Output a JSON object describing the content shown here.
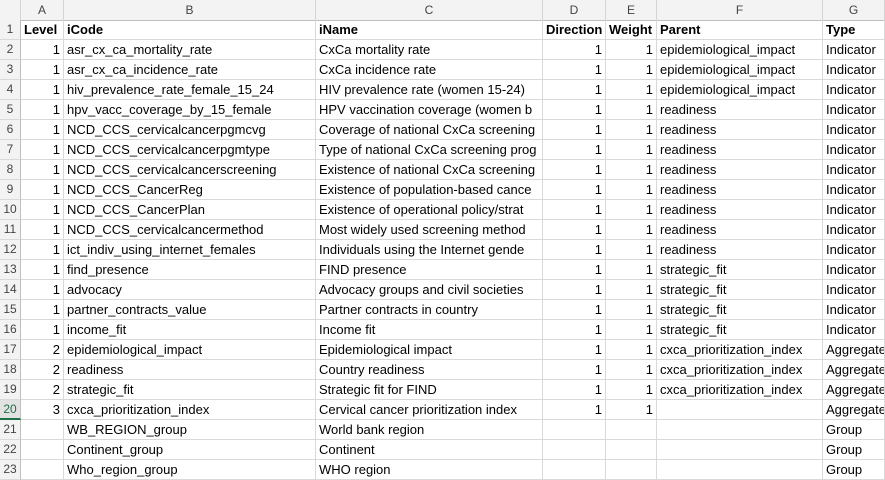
{
  "columns": [
    "A",
    "B",
    "C",
    "D",
    "E",
    "F",
    "G"
  ],
  "header": {
    "level": "Level",
    "icode": "iCode",
    "iname": "iName",
    "direction": "Direction",
    "weight": "Weight",
    "parent": "Parent",
    "type": "Type"
  },
  "rows": [
    {
      "n": "2",
      "level": "1",
      "icode": "asr_cx_ca_mortality_rate",
      "iname": "CxCa mortality rate",
      "direction": "1",
      "weight": "1",
      "parent": "epidemiological_impact",
      "type": "Indicator"
    },
    {
      "n": "3",
      "level": "1",
      "icode": "asr_cx_ca_incidence_rate",
      "iname": "CxCa incidence rate",
      "direction": "1",
      "weight": "1",
      "parent": "epidemiological_impact",
      "type": "Indicator"
    },
    {
      "n": "4",
      "level": "1",
      "icode": "hiv_prevalence_rate_female_15_24",
      "iname": "HIV prevalence rate (women 15-24)",
      "direction": "1",
      "weight": "1",
      "parent": "epidemiological_impact",
      "type": "Indicator"
    },
    {
      "n": "5",
      "level": "1",
      "icode": "hpv_vacc_coverage_by_15_female",
      "iname": "HPV vaccination coverage (women b",
      "direction": "1",
      "weight": "1",
      "parent": "readiness",
      "type": "Indicator"
    },
    {
      "n": "6",
      "level": "1",
      "icode": "NCD_CCS_cervicalcancerpgmcvg",
      "iname": "Coverage of national CxCa screening",
      "direction": "1",
      "weight": "1",
      "parent": "readiness",
      "type": "Indicator"
    },
    {
      "n": "7",
      "level": "1",
      "icode": "NCD_CCS_cervicalcancerpgmtype",
      "iname": "Type of national CxCa screening prog",
      "direction": "1",
      "weight": "1",
      "parent": "readiness",
      "type": "Indicator"
    },
    {
      "n": "8",
      "level": "1",
      "icode": "NCD_CCS_cervicalcancerscreening",
      "iname": "Existence of national CxCa screening",
      "direction": "1",
      "weight": "1",
      "parent": "readiness",
      "type": "Indicator"
    },
    {
      "n": "9",
      "level": "1",
      "icode": "NCD_CCS_CancerReg",
      "iname": "Existence of population-based cance",
      "direction": "1",
      "weight": "1",
      "parent": "readiness",
      "type": "Indicator"
    },
    {
      "n": "10",
      "level": "1",
      "icode": "NCD_CCS_CancerPlan",
      "iname": "Existence of operational policy/strat",
      "direction": "1",
      "weight": "1",
      "parent": "readiness",
      "type": "Indicator"
    },
    {
      "n": "11",
      "level": "1",
      "icode": "NCD_CCS_cervicalcancermethod",
      "iname": "Most widely used screening method",
      "direction": "1",
      "weight": "1",
      "parent": "readiness",
      "type": "Indicator"
    },
    {
      "n": "12",
      "level": "1",
      "icode": "ict_indiv_using_internet_females",
      "iname": "Individuals using the Internet gende",
      "direction": "1",
      "weight": "1",
      "parent": "readiness",
      "type": "Indicator"
    },
    {
      "n": "13",
      "level": "1",
      "icode": "find_presence",
      "iname": "FIND presence",
      "direction": "1",
      "weight": "1",
      "parent": "strategic_fit",
      "type": "Indicator"
    },
    {
      "n": "14",
      "level": "1",
      "icode": "advocacy",
      "iname": "Advocacy groups and civil societies",
      "direction": "1",
      "weight": "1",
      "parent": "strategic_fit",
      "type": "Indicator"
    },
    {
      "n": "15",
      "level": "1",
      "icode": "partner_contracts_value",
      "iname": "Partner contracts in country",
      "direction": "1",
      "weight": "1",
      "parent": "strategic_fit",
      "type": "Indicator"
    },
    {
      "n": "16",
      "level": "1",
      "icode": "income_fit",
      "iname": "Income fit",
      "direction": "1",
      "weight": "1",
      "parent": "strategic_fit",
      "type": "Indicator"
    },
    {
      "n": "17",
      "level": "2",
      "icode": "epidemiological_impact",
      "iname": "Epidemiological impact",
      "direction": "1",
      "weight": "1",
      "parent": "cxca_prioritization_index",
      "type": "Aggregate"
    },
    {
      "n": "18",
      "level": "2",
      "icode": "readiness",
      "iname": "Country readiness",
      "direction": "1",
      "weight": "1",
      "parent": "cxca_prioritization_index",
      "type": "Aggregate"
    },
    {
      "n": "19",
      "level": "2",
      "icode": "strategic_fit",
      "iname": "Strategic fit for FIND",
      "direction": "1",
      "weight": "1",
      "parent": "cxca_prioritization_index",
      "type": "Aggregate"
    },
    {
      "n": "20",
      "level": "3",
      "icode": "cxca_prioritization_index",
      "iname": "Cervical cancer prioritization index",
      "direction": "1",
      "weight": "1",
      "parent": "",
      "type": "Aggregate"
    },
    {
      "n": "21",
      "level": "",
      "icode": "WB_REGION_group",
      "iname": "World bank region",
      "direction": "",
      "weight": "",
      "parent": "",
      "type": "Group"
    },
    {
      "n": "22",
      "level": "",
      "icode": "Continent_group",
      "iname": "Continent",
      "direction": "",
      "weight": "",
      "parent": "",
      "type": "Group"
    },
    {
      "n": "23",
      "level": "",
      "icode": "Who_region_group",
      "iname": "WHO region",
      "direction": "",
      "weight": "",
      "parent": "",
      "type": "Group"
    }
  ],
  "selected_row": "20",
  "colors": {
    "grid": "#d9d9d9",
    "header_bg": "#f3f3f3",
    "selected": "#1e7145"
  }
}
